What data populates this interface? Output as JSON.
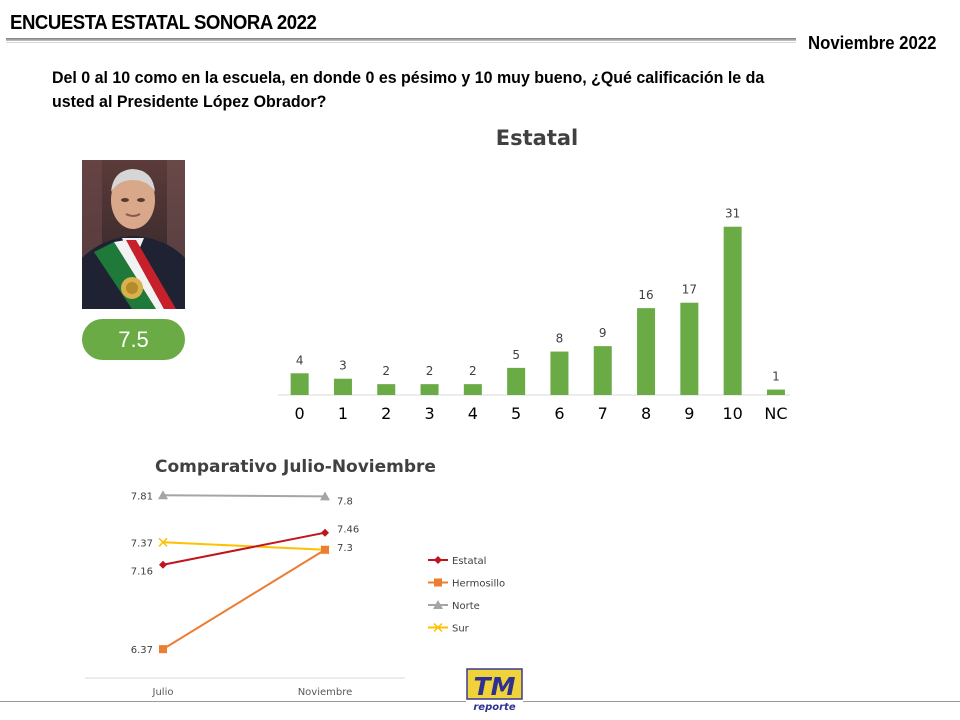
{
  "header": {
    "title": "ENCUESTA ESTATAL SONORA 2022",
    "date": "Noviembre 2022"
  },
  "question": "Del 0 al 10 como en la escuela, en donde 0 es pésimo y 10 muy bueno, ¿Qué calificación le da usted al Presidente López Obrador?",
  "score": "7.5",
  "logo_text": {
    "main": "TM",
    "sub": "reporte"
  },
  "colors": {
    "accent_green": "#6aab45",
    "rule_gray": "#9a9a9a"
  },
  "chart_data": [
    {
      "type": "bar",
      "title": "Estatal",
      "categories": [
        "0",
        "1",
        "2",
        "3",
        "4",
        "5",
        "6",
        "7",
        "8",
        "9",
        "10",
        "NC"
      ],
      "values": [
        4,
        3,
        2,
        2,
        2,
        5,
        8,
        9,
        16,
        17,
        31,
        1
      ],
      "data_labels": [
        "4",
        "3",
        "2",
        "2",
        "2",
        "5",
        "8",
        "9",
        "16",
        "17",
        "31",
        "1"
      ],
      "color": "#6aab45",
      "ylim": [
        0,
        35
      ],
      "grid": false
    },
    {
      "type": "line",
      "title": "Comparativo Julio-Noviembre",
      "categories": [
        "Julio",
        "Noviembre"
      ],
      "ylim": [
        6.1,
        8.0
      ],
      "legend_position": "right",
      "grid": false,
      "series": [
        {
          "name": "Estatal",
          "values": [
            7.16,
            7.46
          ],
          "labels": [
            "7.16",
            "7.46"
          ],
          "color": "#c0141f",
          "marker": "diamond"
        },
        {
          "name": "Hermosillo",
          "values": [
            6.37,
            7.3
          ],
          "labels": [
            "6.37",
            "7.3"
          ],
          "color": "#ed7d31",
          "marker": "square"
        },
        {
          "name": "Norte",
          "values": [
            7.81,
            7.8
          ],
          "labels": [
            "7.81",
            "7.8"
          ],
          "color": "#a5a5a5",
          "marker": "triangle"
        },
        {
          "name": "Sur",
          "values": [
            7.37,
            7.3
          ],
          "labels": [
            "7.37",
            ""
          ],
          "color": "#ffc000",
          "marker": "x"
        }
      ]
    }
  ]
}
